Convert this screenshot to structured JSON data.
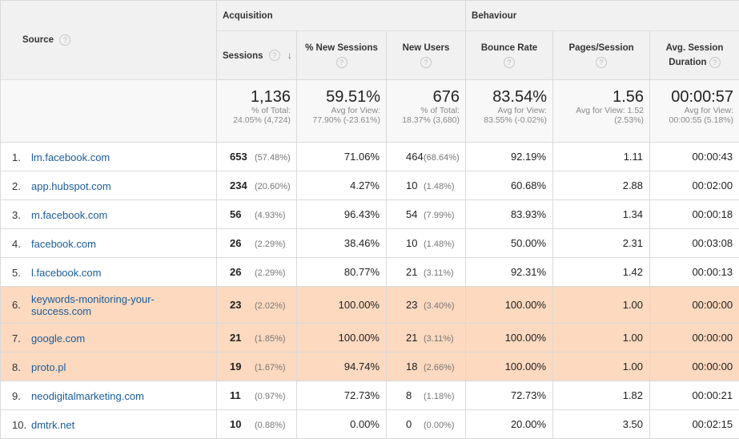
{
  "header": {
    "source_label": "Source",
    "acquisition_label": "Acquisition",
    "behaviour_label": "Behaviour",
    "help_glyph": "?",
    "columns": {
      "sessions": "Sessions",
      "new_sessions": "% New Sessions",
      "new_users": "New Users",
      "bounce_rate": "Bounce Rate",
      "pages_session": "Pages/Session",
      "avg_duration_line1": "Avg. Session",
      "avg_duration_line2": "Duration"
    },
    "sort_icon": "arrow-down-icon",
    "sort_glyph": "↓"
  },
  "totals": {
    "sessions": {
      "value": "1,136",
      "sub1": "% of Total:",
      "sub2": "24.05% (4,724)"
    },
    "new_sessions": {
      "value": "59.51%",
      "sub1": "Avg for View:",
      "sub2": "77.90% (-23.61%)"
    },
    "new_users": {
      "value": "676",
      "sub1": "% of Total:",
      "sub2": "18.37% (3,680)"
    },
    "bounce_rate": {
      "value": "83.54%",
      "sub1": "Avg for View:",
      "sub2": "83.55% (-0.02%)"
    },
    "pages_session": {
      "value": "1.56",
      "sub1": "Avg for View: 1.52",
      "sub2": "(2.53%)"
    },
    "avg_duration": {
      "value": "00:00:57",
      "sub1": "Avg for View:",
      "sub2": "00:00:55 (5.18%)"
    }
  },
  "rows": [
    {
      "idx": "1.",
      "source": "lm.facebook.com",
      "sessions": "653",
      "sessions_pct": "(57.48%)",
      "new_sessions": "71.06%",
      "new_users": "464",
      "new_users_pct": "(68.64%)",
      "bounce": "92.19%",
      "pages": "1.11",
      "duration": "00:00:43"
    },
    {
      "idx": "2.",
      "source": "app.hubspot.com",
      "sessions": "234",
      "sessions_pct": "(20.60%)",
      "new_sessions": "4.27%",
      "new_users": "10",
      "new_users_pct": "(1.48%)",
      "bounce": "60.68%",
      "pages": "2.88",
      "duration": "00:02:00"
    },
    {
      "idx": "3.",
      "source": "m.facebook.com",
      "sessions": "56",
      "sessions_pct": "(4.93%)",
      "new_sessions": "96.43%",
      "new_users": "54",
      "new_users_pct": "(7.99%)",
      "bounce": "83.93%",
      "pages": "1.34",
      "duration": "00:00:18"
    },
    {
      "idx": "4.",
      "source": "facebook.com",
      "sessions": "26",
      "sessions_pct": "(2.29%)",
      "new_sessions": "38.46%",
      "new_users": "10",
      "new_users_pct": "(1.48%)",
      "bounce": "50.00%",
      "pages": "2.31",
      "duration": "00:03:08"
    },
    {
      "idx": "5.",
      "source": "l.facebook.com",
      "sessions": "26",
      "sessions_pct": "(2.29%)",
      "new_sessions": "80.77%",
      "new_users": "21",
      "new_users_pct": "(3.11%)",
      "bounce": "92.31%",
      "pages": "1.42",
      "duration": "00:00:13"
    },
    {
      "idx": "6.",
      "source": "keywords-monitoring-your-success.com",
      "sessions": "23",
      "sessions_pct": "(2.02%)",
      "new_sessions": "100.00%",
      "new_users": "23",
      "new_users_pct": "(3.40%)",
      "bounce": "100.00%",
      "pages": "1.00",
      "duration": "00:00:00"
    },
    {
      "idx": "7.",
      "source": "google.com",
      "sessions": "21",
      "sessions_pct": "(1.85%)",
      "new_sessions": "100.00%",
      "new_users": "21",
      "new_users_pct": "(3.11%)",
      "bounce": "100.00%",
      "pages": "1.00",
      "duration": "00:00:00"
    },
    {
      "idx": "8.",
      "source": "proto.pl",
      "sessions": "19",
      "sessions_pct": "(1.67%)",
      "new_sessions": "94.74%",
      "new_users": "18",
      "new_users_pct": "(2.66%)",
      "bounce": "100.00%",
      "pages": "1.00",
      "duration": "00:00:00"
    },
    {
      "idx": "9.",
      "source": "neodigitalmarketing.com",
      "sessions": "11",
      "sessions_pct": "(0.97%)",
      "new_sessions": "72.73%",
      "new_users": "8",
      "new_users_pct": "(1.18%)",
      "bounce": "72.73%",
      "pages": "1.82",
      "duration": "00:00:21"
    },
    {
      "idx": "10.",
      "source": "dmtrk.net",
      "sessions": "10",
      "sessions_pct": "(0.88%)",
      "new_sessions": "0.00%",
      "new_users": "0",
      "new_users_pct": "(0.00%)",
      "bounce": "20.00%",
      "pages": "3.50",
      "duration": "00:02:15"
    }
  ],
  "colors": {
    "highlight_row": "#fcd9bf",
    "link": "#1a5c9a",
    "header_bg": "#f1f1f1"
  }
}
